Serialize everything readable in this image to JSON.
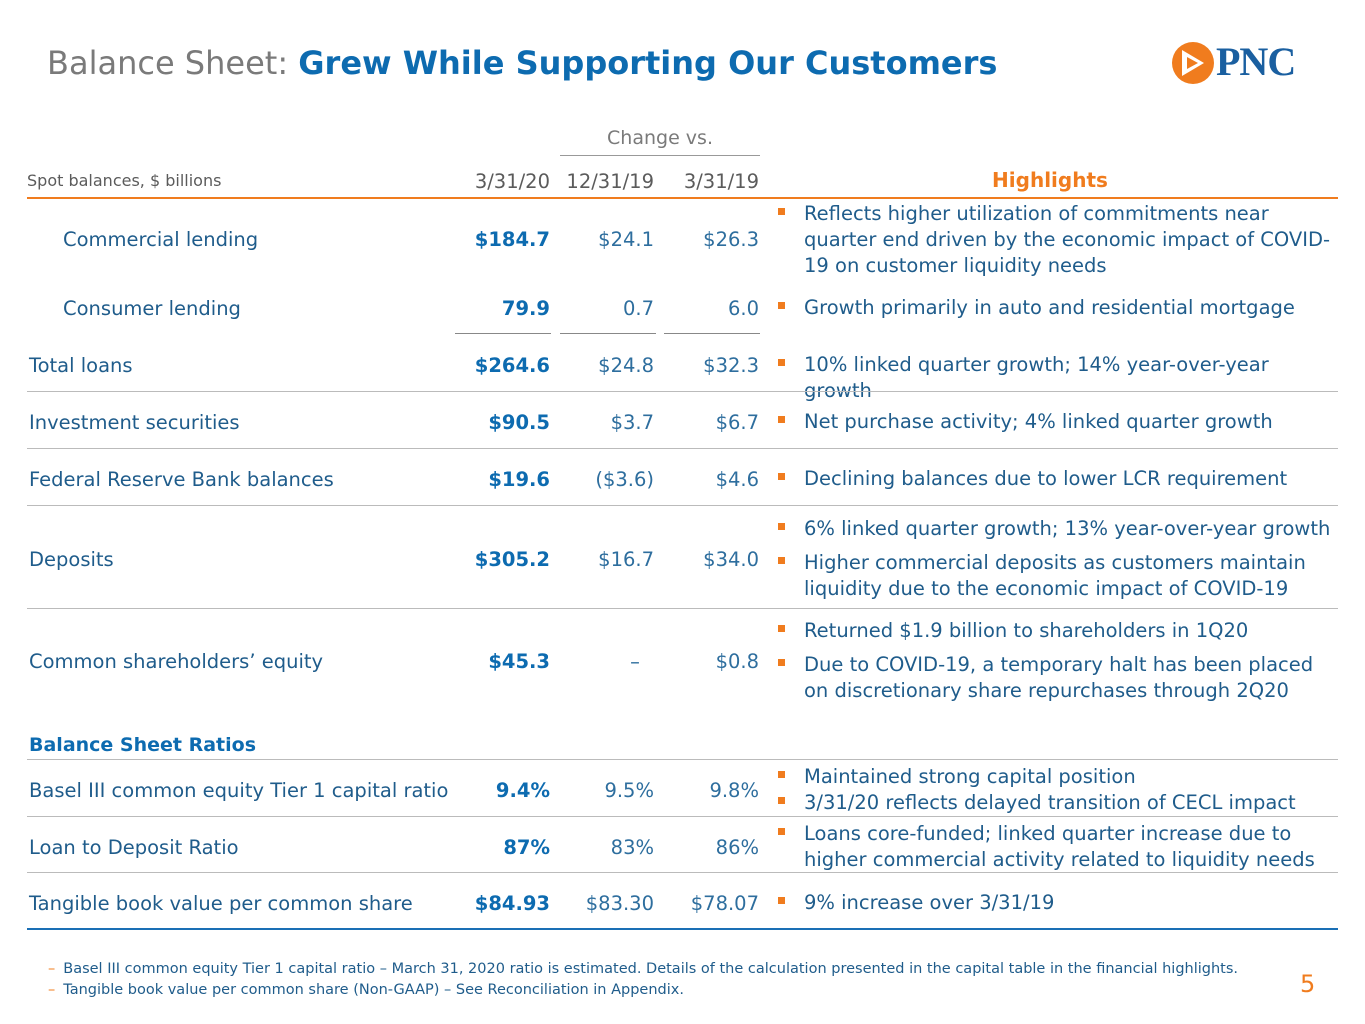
{
  "title": {
    "prefix": "Balance Sheet:",
    "main": "Grew While Supporting Our Customers"
  },
  "logo": {
    "text": "PNC"
  },
  "table": {
    "change_header": "Change vs.",
    "spot_header": "Spot balances, $ billions",
    "col_headers": [
      "3/31/20",
      "12/31/19",
      "3/31/19"
    ],
    "highlights_header": "Highlights",
    "rows": [
      {
        "label": "Commercial lending",
        "v1": "$184.7",
        "v2": "$24.1",
        "v3": "$26.3",
        "highlights": [
          "Reflects higher utilization of commitments near quarter end driven by the economic impact of COVID-19 on customer liquidity needs"
        ]
      },
      {
        "label": "Consumer lending",
        "v1": "79.9",
        "v2": "0.7",
        "v3": "6.0",
        "highlights": [
          "Growth primarily in auto and residential mortgage"
        ]
      },
      {
        "label": "Total loans",
        "v1": "$264.6",
        "v2": "$24.8",
        "v3": "$32.3",
        "highlights": [
          "10% linked quarter growth; 14% year-over-year growth"
        ]
      },
      {
        "label": "Investment securities",
        "v1": "$90.5",
        "v2": "$3.7",
        "v3": "$6.7",
        "highlights": [
          "Net purchase activity; 4% linked quarter growth"
        ]
      },
      {
        "label": "Federal Reserve Bank balances",
        "v1": "$19.6",
        "v2": "($3.6)",
        "v3": "$4.6",
        "highlights": [
          "Declining balances due to lower LCR requirement"
        ]
      },
      {
        "label": "Deposits",
        "v1": "$305.2",
        "v2": "$16.7",
        "v3": "$34.0",
        "highlights": [
          "6% linked quarter growth; 13% year-over-year growth",
          "Higher commercial deposits as customers maintain liquidity due to the economic impact of COVID-19"
        ]
      },
      {
        "label": "Common shareholders’ equity",
        "v1": "$45.3",
        "v2": "–",
        "v3": "$0.8",
        "highlights": [
          "Returned $1.9 billion to shareholders in 1Q20",
          "Due to COVID-19, a temporary halt has been placed on discretionary share repurchases through 2Q20"
        ]
      }
    ],
    "ratios_section": "Balance Sheet Ratios",
    "ratio_rows": [
      {
        "label": "Basel III common equity Tier 1 capital ratio",
        "v1": "9.4%",
        "v2": "9.5%",
        "v3": "9.8%",
        "highlights": [
          "Maintained strong capital position",
          "3/31/20 reflects delayed transition of CECL impact"
        ]
      },
      {
        "label": "Loan to Deposit Ratio",
        "v1": "87%",
        "v2": "83%",
        "v3": "86%",
        "highlights": [
          "Loans core-funded; linked quarter increase due to higher commercial activity related to liquidity needs"
        ]
      },
      {
        "label": "Tangible book value per common share",
        "v1": "$84.93",
        "v2": "$83.30",
        "v3": "$78.07",
        "highlights": [
          "9% increase over 3/31/19"
        ]
      }
    ]
  },
  "footnotes": [
    "Basel III common equity Tier 1 capital ratio – March 31, 2020 ratio is estimated. Details of the calculation presented in the capital table in the financial highlights.",
    "Tangible book value per common share (Non-GAAP) – See Reconciliation in Appendix."
  ],
  "footnote_marker": "–",
  "page_number": "5",
  "colors": {
    "accent_orange": "#f07c1e",
    "brand_blue": "#0d6bb0",
    "text_blue": "#1f5c8b"
  },
  "icons": {
    "logo_mark": "pnc-triangle-logo-icon",
    "bullet": "orange-square-bullet-icon"
  }
}
